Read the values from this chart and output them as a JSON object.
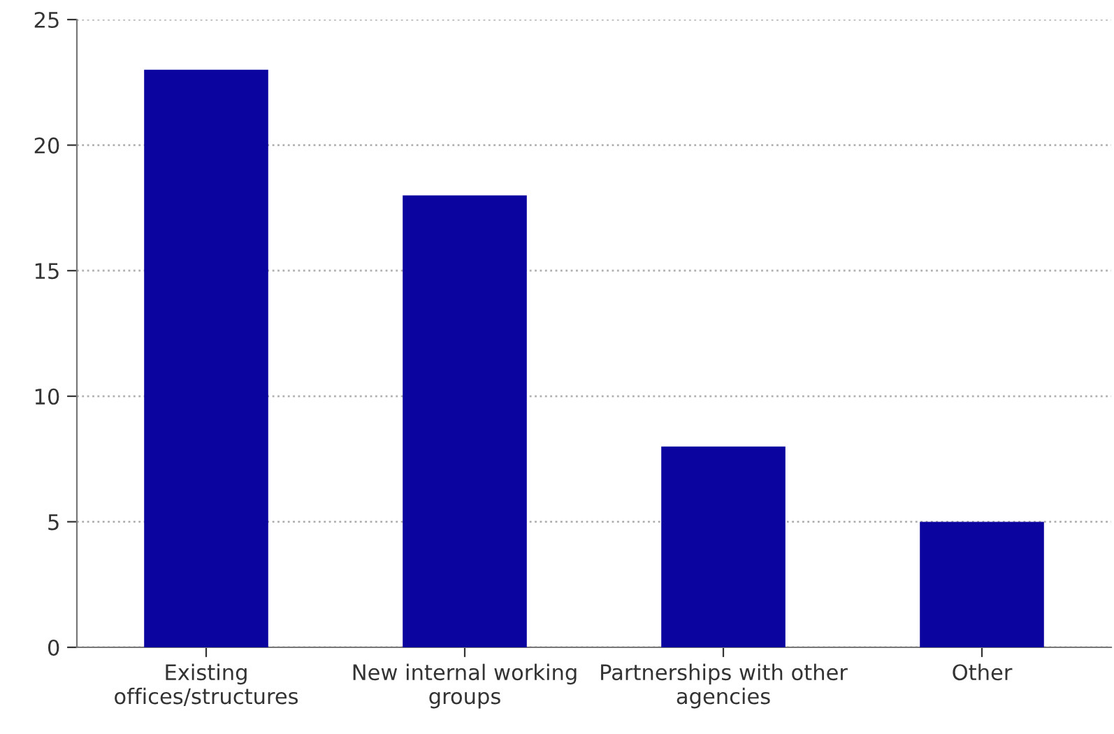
{
  "chart_data": {
    "type": "bar",
    "categories": [
      "Existing\noffices/structures",
      "New internal working\ngroups",
      "Partnerships with other\nagencies",
      "Other"
    ],
    "values": [
      23,
      18,
      8,
      5
    ],
    "color": "#0c049e",
    "ylim": [
      0,
      25
    ],
    "yticks": [
      0,
      5,
      10,
      15,
      20,
      25
    ],
    "grid": "y",
    "line_style": "dotted"
  }
}
